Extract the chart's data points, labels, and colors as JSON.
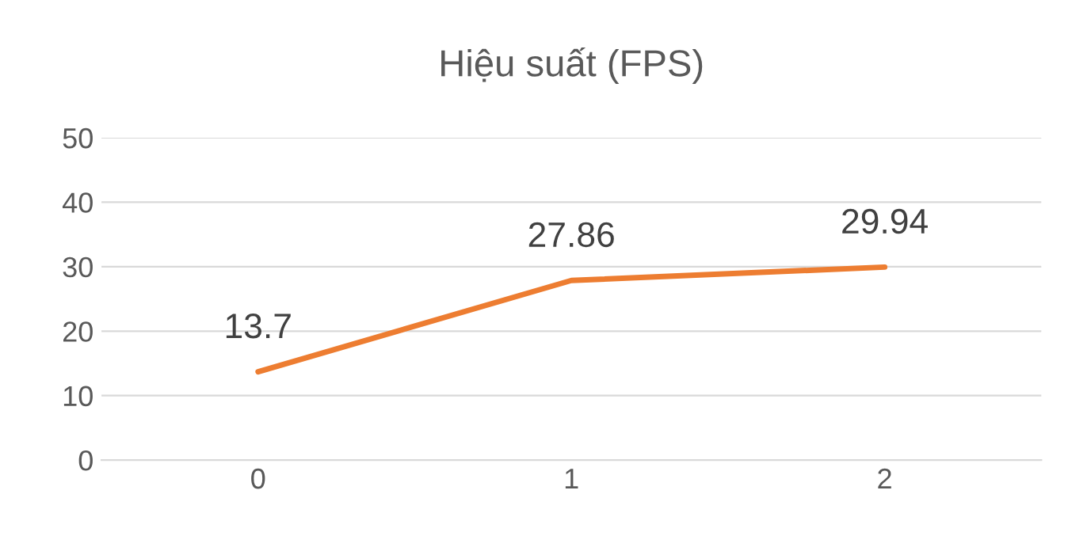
{
  "chart_data": {
    "type": "line",
    "title": "Hiệu suất (FPS)",
    "categories": [
      "0",
      "1",
      "2"
    ],
    "series": [
      {
        "color": "#ed7d31",
        "values": [
          13.7,
          27.86,
          29.94
        ]
      }
    ],
    "ylim": [
      0,
      50
    ],
    "yticks": [
      0,
      10,
      20,
      30,
      40,
      50
    ],
    "grid": "y",
    "data_labels": true
  }
}
